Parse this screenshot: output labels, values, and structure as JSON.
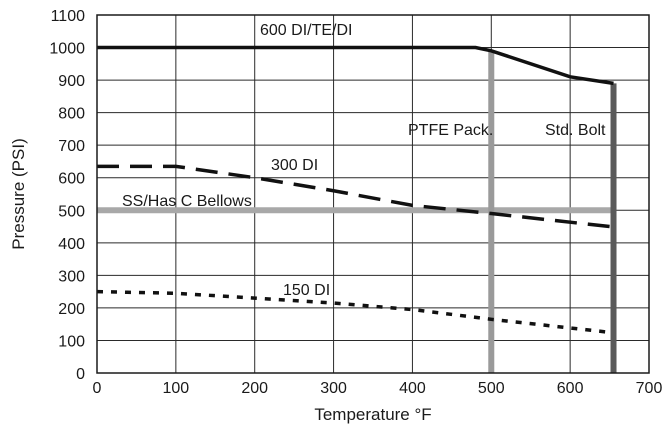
{
  "chart_data": {
    "type": "line",
    "title": "",
    "xlabel": "Temperature °F",
    "ylabel": "Pressure (PSI)",
    "xlim": [
      0,
      700
    ],
    "ylim": [
      0,
      1100
    ],
    "x_ticks": [
      0,
      100,
      200,
      300,
      400,
      500,
      600,
      700
    ],
    "y_ticks": [
      0,
      100,
      200,
      300,
      400,
      500,
      600,
      700,
      800,
      900,
      1000,
      1100
    ],
    "grid": true,
    "legend": "none",
    "series": [
      {
        "label": "600 DI/TE/DI",
        "style": "solid",
        "color": "#111111",
        "points": [
          [
            0,
            1000
          ],
          [
            480,
            1000
          ],
          [
            500,
            990
          ],
          [
            600,
            910
          ],
          [
            655,
            890
          ]
        ]
      },
      {
        "label": "300 DI",
        "style": "long-dash",
        "color": "#111111",
        "points": [
          [
            0,
            635
          ],
          [
            100,
            635
          ],
          [
            200,
            600
          ],
          [
            300,
            560
          ],
          [
            400,
            515
          ],
          [
            500,
            490
          ],
          [
            650,
            450
          ]
        ]
      },
      {
        "label": "150 DI",
        "style": "dotted",
        "color": "#111111",
        "points": [
          [
            0,
            250
          ],
          [
            100,
            245
          ],
          [
            200,
            230
          ],
          [
            300,
            215
          ],
          [
            400,
            195
          ],
          [
            500,
            165
          ],
          [
            650,
            125
          ]
        ]
      }
    ],
    "limits": [
      {
        "label": "SS/Has C Bellows",
        "orientation": "horizontal",
        "value": 500,
        "x_range": [
          0,
          655
        ],
        "color": "#a8a8a8"
      },
      {
        "label": "PTFE Pack.",
        "orientation": "vertical",
        "value": 500,
        "y_range": [
          0,
          990
        ],
        "color": "#9a9a9a"
      },
      {
        "label": "Std. Bolt",
        "orientation": "vertical",
        "value": 655,
        "y_range": [
          0,
          890
        ],
        "color": "#5a5a5a"
      }
    ]
  }
}
